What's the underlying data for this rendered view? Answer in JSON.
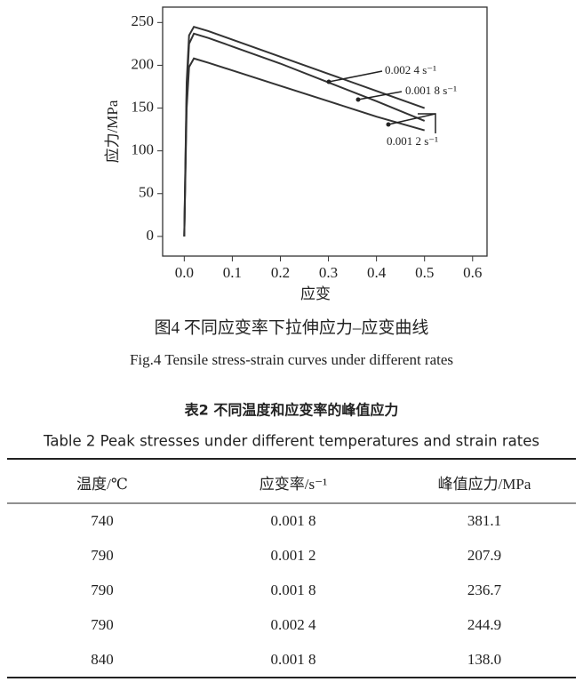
{
  "chart_data": {
    "type": "line",
    "x_label": "应变",
    "y_label": "应力/MPa",
    "x": [
      0,
      0.005,
      0.01,
      0.02,
      0.05,
      0.1,
      0.2,
      0.3,
      0.4,
      0.5
    ],
    "series": [
      {
        "name": "0.002 4 s⁻¹",
        "color": "#333333",
        "values": [
          0,
          180,
          235,
          245,
          240,
          230,
          210,
          190,
          170,
          150
        ]
      },
      {
        "name": "0.001 8 s⁻¹",
        "color": "#333333",
        "values": [
          0,
          170,
          225,
          237,
          232,
          222,
          202,
          180,
          158,
          135
        ]
      },
      {
        "name": "0.001 2 s⁻¹",
        "color": "#333333",
        "values": [
          0,
          150,
          198,
          208,
          203,
          194,
          176,
          158,
          140,
          124
        ]
      }
    ],
    "xlim": [
      -0.045,
      0.63
    ],
    "ylim": [
      -23,
      268
    ],
    "xticks": [
      {
        "value": 0,
        "label": "0.0"
      },
      0.1,
      0.2,
      0.3,
      0.4,
      0.5,
      0.6
    ],
    "yticks": [
      0,
      50,
      100,
      150,
      200,
      250
    ]
  },
  "figure_caption_zh": "图4  不同应变率下拉伸应力–应变曲线",
  "figure_caption_en": "Fig.4  Tensile stress-strain curves under different rates",
  "table": {
    "caption_zh": "表2  不同温度和应变率的峰值应力",
    "caption_en": "Table 2  Peak stresses under different temperatures and strain rates",
    "columns": [
      "温度/℃",
      "应变率/s⁻¹",
      "峰值应力/MPa"
    ],
    "rows": [
      [
        "740",
        "0.001 8",
        "381.1"
      ],
      [
        "790",
        "0.001 2",
        "207.9"
      ],
      [
        "790",
        "0.001 8",
        "236.7"
      ],
      [
        "790",
        "0.002 4",
        "244.9"
      ],
      [
        "840",
        "0.001 8",
        "138.0"
      ]
    ]
  }
}
